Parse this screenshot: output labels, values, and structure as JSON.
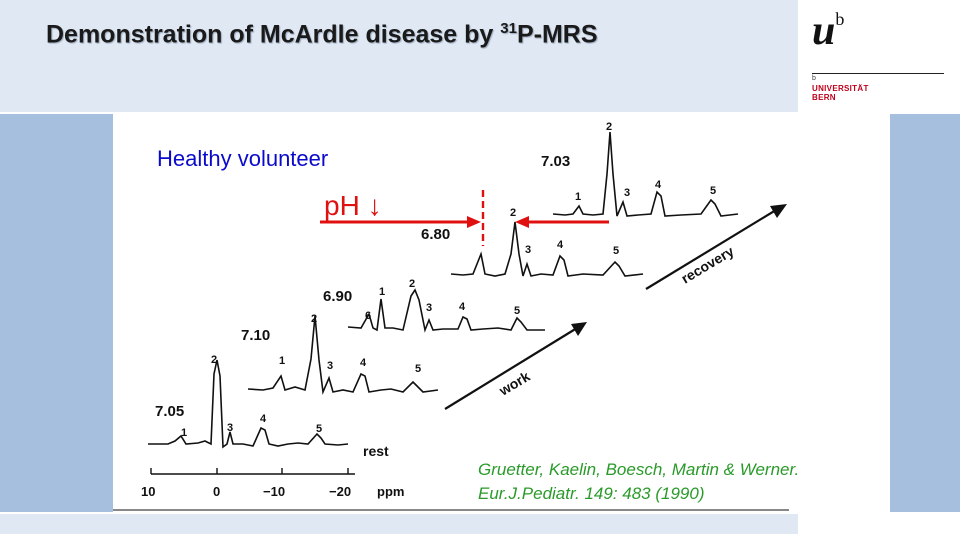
{
  "header": {
    "title_main": "Demonstration of McArdle disease by ",
    "title_sup": "31",
    "title_tail": "P-MRS"
  },
  "logo": {
    "mark": "u",
    "mark_sup": "b",
    "small": "b",
    "line1": "UNIVERSITÄT",
    "line2": "BERN"
  },
  "figure": {
    "healthy_label": "Healthy volunteer",
    "ph_label": "pH ↓",
    "spectra": [
      {
        "ph": "7.05",
        "peaks": [
          "1",
          "2",
          "3",
          "4",
          "5"
        ],
        "stage": "rest"
      },
      {
        "ph": "7.10",
        "peaks": [
          "1",
          "2",
          "3",
          "4",
          "5"
        ]
      },
      {
        "ph": "6.90",
        "peaks": [
          "6",
          "1",
          "2",
          "3",
          "4",
          "5"
        ]
      },
      {
        "ph": "6.80",
        "peaks": [
          "2",
          "3",
          "4",
          "5"
        ]
      },
      {
        "ph": "7.03",
        "peaks": [
          "1",
          "2",
          "3",
          "4",
          "5"
        ]
      }
    ],
    "arrows": {
      "work": "work",
      "recovery": "recovery"
    },
    "axis": {
      "ticks": [
        "10",
        "0",
        "−10",
        "−20"
      ],
      "unit": "ppm"
    },
    "citation": {
      "line1": "Gruetter, Kaelin, Boesch, Martin & Werner.",
      "line2": "Eur.J.Pediatr. 149: 483 (1990)"
    }
  },
  "colors": {
    "header_bg": "#dfe8f3",
    "band": "#a6bfde",
    "blue_text": "#0a0acc",
    "red": "#e01010",
    "citation": "#2a9a2a",
    "logo_red": "#c0001a"
  }
}
